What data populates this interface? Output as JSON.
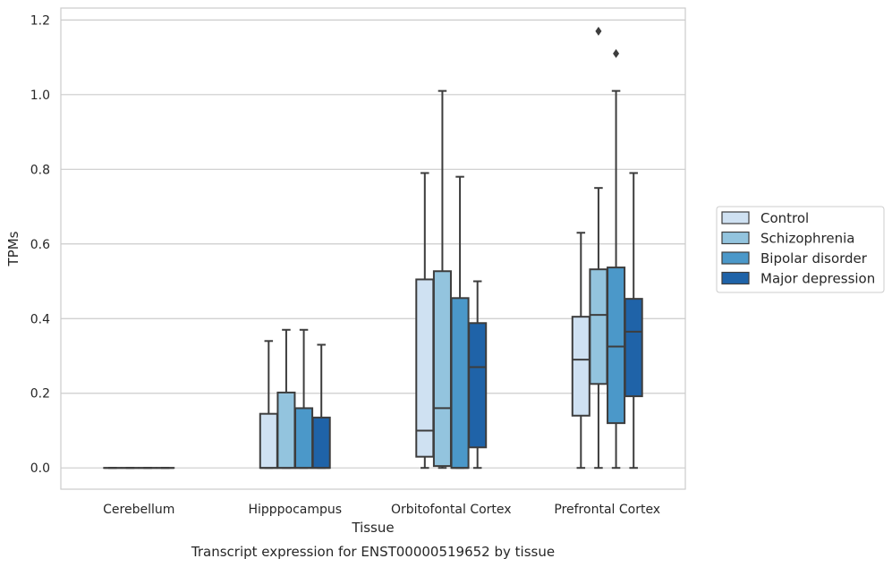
{
  "chart_data": {
    "type": "box",
    "xlabel": "Tissue",
    "ylabel": "TPMs",
    "caption": "Transcript expression for ENST00000519652 by tissue",
    "ylim": [
      -0.057,
      1.232
    ],
    "yticks": [
      0.0,
      0.2,
      0.4,
      0.6,
      0.8,
      1.0,
      1.2
    ],
    "ytick_labels": [
      "0.0",
      "0.2",
      "0.4",
      "0.6",
      "0.8",
      "1.0",
      "1.2"
    ],
    "grid": "horizontal",
    "legend_position": "right",
    "categories": [
      "Cerebellum",
      "Hipppocampus",
      "Orbitofontal Cortex",
      "Prefrontal Cortex"
    ],
    "series": [
      {
        "name": "Control",
        "color": "#cfe1f2",
        "boxes": [
          {
            "whislo": 0.0,
            "q1": 0.0,
            "med": 0.0,
            "q3": 0.0,
            "whishi": 0.0,
            "fliers": []
          },
          {
            "whislo": 0.0,
            "q1": 0.0,
            "med": 0.0,
            "q3": 0.145,
            "whishi": 0.34,
            "fliers": []
          },
          {
            "whislo": 0.0,
            "q1": 0.03,
            "med": 0.1,
            "q3": 0.505,
            "whishi": 0.79,
            "fliers": []
          },
          {
            "whislo": 0.0,
            "q1": 0.14,
            "med": 0.29,
            "q3": 0.405,
            "whishi": 0.63,
            "fliers": []
          }
        ]
      },
      {
        "name": "Schizophrenia",
        "color": "#93c4de",
        "boxes": [
          {
            "whislo": 0.0,
            "q1": 0.0,
            "med": 0.0,
            "q3": 0.0,
            "whishi": 0.0,
            "fliers": []
          },
          {
            "whislo": 0.0,
            "q1": 0.0,
            "med": 0.0,
            "q3": 0.202,
            "whishi": 0.37,
            "fliers": []
          },
          {
            "whislo": 0.0,
            "q1": 0.005,
            "med": 0.16,
            "q3": 0.527,
            "whishi": 1.01,
            "fliers": []
          },
          {
            "whislo": 0.0,
            "q1": 0.225,
            "med": 0.41,
            "q3": 0.532,
            "whishi": 0.75,
            "fliers": [
              1.17
            ]
          }
        ]
      },
      {
        "name": "Bipolar disorder",
        "color": "#4b98c9",
        "boxes": [
          {
            "whislo": 0.0,
            "q1": 0.0,
            "med": 0.0,
            "q3": 0.0,
            "whishi": 0.0,
            "fliers": []
          },
          {
            "whislo": 0.0,
            "q1": 0.0,
            "med": 0.0,
            "q3": 0.16,
            "whishi": 0.37,
            "fliers": []
          },
          {
            "whislo": 0.0,
            "q1": 0.0,
            "med": 0.0,
            "q3": 0.455,
            "whishi": 0.78,
            "fliers": []
          },
          {
            "whislo": 0.0,
            "q1": 0.12,
            "med": 0.325,
            "q3": 0.537,
            "whishi": 1.01,
            "fliers": [
              1.11
            ]
          }
        ]
      },
      {
        "name": "Major depression",
        "color": "#1f63a8",
        "boxes": [
          {
            "whislo": 0.0,
            "q1": 0.0,
            "med": 0.0,
            "q3": 0.0,
            "whishi": 0.0,
            "fliers": []
          },
          {
            "whislo": 0.0,
            "q1": 0.0,
            "med": 0.0,
            "q3": 0.135,
            "whishi": 0.33,
            "fliers": []
          },
          {
            "whislo": 0.0,
            "q1": 0.055,
            "med": 0.27,
            "q3": 0.388,
            "whishi": 0.5,
            "fliers": []
          },
          {
            "whislo": 0.0,
            "q1": 0.192,
            "med": 0.365,
            "q3": 0.453,
            "whishi": 0.79,
            "fliers": []
          }
        ]
      }
    ]
  }
}
